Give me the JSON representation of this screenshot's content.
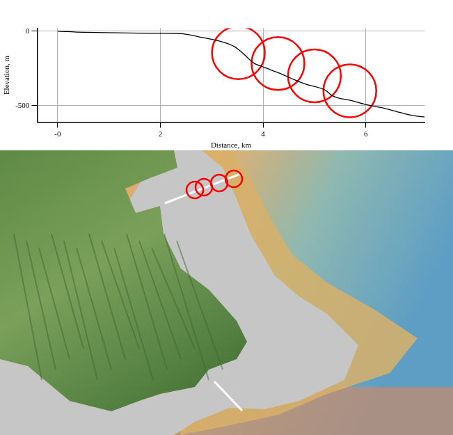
{
  "chart_data": {
    "type": "line",
    "xlabel": "Distance, km",
    "ylabel": "Elevation, m",
    "xlim": [
      -0.4,
      7.15
    ],
    "ylim": [
      -610,
      20
    ],
    "xticks": [
      {
        "value": 0,
        "label": "-0"
      },
      2,
      4,
      6
    ],
    "yticks": [
      -500,
      0
    ],
    "grid": true,
    "series": [
      {
        "color": "#000000",
        "line_style": "solid",
        "x": [
          0,
          0.5,
          1.78,
          2.42,
          2.8,
          3.18,
          3.44,
          3.63,
          3.82,
          4.01,
          4.33,
          4.58,
          4.83,
          5.09,
          5.22,
          5.34,
          5.47,
          5.73,
          5.98,
          6.36,
          6.74,
          6.93,
          7.15
        ],
        "values": [
          0,
          -7,
          -14,
          -17,
          -41,
          -69,
          -103,
          -155,
          -214,
          -241,
          -283,
          -321,
          -355,
          -379,
          -397,
          -431,
          -448,
          -466,
          -490,
          -517,
          -552,
          -566,
          -576
        ]
      },
      {
        "type": "scatter",
        "marker": "circle",
        "color": "#ff0000",
        "x": [
          3.52,
          4.29,
          5.0,
          5.69
        ],
        "values": [
          -145,
          -217,
          -300,
          -400
        ]
      }
    ]
  }
}
